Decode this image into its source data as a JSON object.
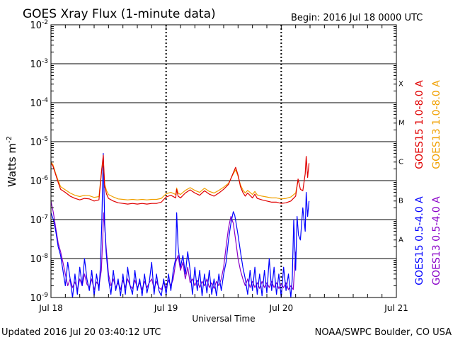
{
  "chart_data": {
    "type": "line",
    "title": "GOES Xray Flux (1-minute data)",
    "begin_label": "Begin:  2016 Jul 18 0000 UTC",
    "xlabel": "Universal Time",
    "ylabel_base": "Watts m",
    "ylabel_exp": "-2",
    "yscale": "log",
    "ylim": [
      1e-09,
      0.01
    ],
    "xlim": [
      0,
      72
    ],
    "x_unit": "hours since 2016 Jul 18 0000 UTC",
    "y_ticks": [
      {
        "base": "10",
        "exp": "-2",
        "value": 0.01
      },
      {
        "base": "10",
        "exp": "-3",
        "value": 0.001
      },
      {
        "base": "10",
        "exp": "-4",
        "value": 0.0001
      },
      {
        "base": "10",
        "exp": "-5",
        "value": 1e-05
      },
      {
        "base": "10",
        "exp": "-6",
        "value": 1e-06
      },
      {
        "base": "10",
        "exp": "-7",
        "value": 1e-07
      },
      {
        "base": "10",
        "exp": "-8",
        "value": 1e-08
      },
      {
        "base": "10",
        "exp": "-9",
        "value": 1e-09
      }
    ],
    "x_ticks": [
      {
        "label": "Jul 18",
        "x": 0
      },
      {
        "label": "Jul 19",
        "x": 24
      },
      {
        "label": "Jul 20",
        "x": 48
      },
      {
        "label": "Jul 21",
        "x": 72
      }
    ],
    "flare_classes": [
      {
        "label": "X",
        "value": 0.0003162
      },
      {
        "label": "M",
        "value": 3.162e-05
      },
      {
        "label": "C",
        "value": 3.162e-06
      },
      {
        "label": "B",
        "value": 3.162e-07
      },
      {
        "label": "A",
        "value": 3.162e-08
      }
    ],
    "gridlines": [
      0.001,
      0.0001,
      1e-05,
      1e-06,
      1e-07,
      1e-08
    ],
    "series": [
      {
        "name": "GOES15 1.0-8.0 A",
        "color": "#e00000",
        "x": [
          0,
          0.4,
          1,
          1.5,
          2,
          3,
          4,
          5,
          6,
          7,
          8,
          9,
          10,
          10.6,
          10.9,
          11.2,
          11.6,
          12,
          13,
          14,
          15,
          16,
          17,
          18,
          19,
          20,
          21,
          22,
          23,
          24,
          25,
          26,
          26.2,
          26.5,
          27,
          28,
          29,
          30,
          31,
          32,
          33,
          34,
          35,
          36,
          37,
          38,
          38.5,
          39,
          39.5,
          40,
          40.5,
          41,
          42,
          42.5,
          43,
          44,
          45,
          46,
          47,
          48,
          49,
          50,
          51,
          51.5,
          52,
          52.5,
          53,
          53.2,
          53.5,
          53.8
        ],
        "values": [
          2.8e-06,
          2.4e-06,
          1.4e-06,
          9e-07,
          6e-07,
          5e-07,
          4e-07,
          3.5e-07,
          3.2e-07,
          3.5e-07,
          3.4e-07,
          3e-07,
          3.2e-07,
          2e-06,
          4.5e-06,
          7e-07,
          4.5e-07,
          3.5e-07,
          3e-07,
          2.7e-07,
          2.6e-07,
          2.5e-07,
          2.6e-07,
          2.5e-07,
          2.6e-07,
          2.5e-07,
          2.6e-07,
          2.6e-07,
          2.8e-07,
          3.8e-07,
          4.2e-07,
          3.6e-07,
          6e-07,
          4e-07,
          3.6e-07,
          4.8e-07,
          5.8e-07,
          4.8e-07,
          4.2e-07,
          5.5e-07,
          4.5e-07,
          4e-07,
          4.8e-07,
          6e-07,
          8e-07,
          1.6e-06,
          2.2e-06,
          1.4e-06,
          7e-07,
          5e-07,
          4e-07,
          4.8e-07,
          3.6e-07,
          4.5e-07,
          3.5e-07,
          3.2e-07,
          3e-07,
          2.8e-07,
          2.8e-07,
          2.6e-07,
          2.7e-07,
          3e-07,
          4e-07,
          1.1e-06,
          6e-07,
          5.5e-07,
          1.5e-06,
          4.2e-06,
          1.2e-06,
          2.8e-06
        ]
      },
      {
        "name": "GOES13 1.0-8.0 A",
        "color": "#f0a000",
        "x": [
          0,
          0.4,
          1,
          1.5,
          2,
          3,
          4,
          5,
          6,
          7,
          8,
          9,
          10,
          10.6,
          10.9,
          11.2,
          11.6,
          12,
          13,
          14,
          15,
          16,
          17,
          18,
          19,
          20,
          21,
          22,
          23,
          24,
          25,
          26,
          26.2,
          26.5,
          27,
          28,
          29,
          30,
          31,
          32,
          33,
          34,
          35,
          36,
          37,
          38,
          38.5,
          39,
          39.5,
          40,
          40.5,
          41,
          42,
          42.5,
          43,
          44,
          45,
          46,
          47,
          48,
          49,
          50,
          51,
          51.5
        ],
        "values": [
          3e-06,
          2.6e-06,
          1.5e-06,
          1e-06,
          7e-07,
          5.8e-07,
          4.8e-07,
          4.2e-07,
          3.9e-07,
          4.2e-07,
          4.1e-07,
          3.7e-07,
          3.9e-07,
          2e-06,
          3e-06,
          8e-07,
          5.5e-07,
          4.4e-07,
          3.8e-07,
          3.4e-07,
          3.3e-07,
          3.2e-07,
          3.3e-07,
          3.2e-07,
          3.3e-07,
          3.2e-07,
          3.3e-07,
          3.3e-07,
          3.5e-07,
          4.6e-07,
          5e-07,
          4.4e-07,
          6.5e-07,
          4.8e-07,
          4.4e-07,
          5.6e-07,
          6.6e-07,
          5.6e-07,
          5e-07,
          6.4e-07,
          5.3e-07,
          4.8e-07,
          5.6e-07,
          6.8e-07,
          8.5e-07,
          1.5e-06,
          1.9e-06,
          1.3e-06,
          7.8e-07,
          5.8e-07,
          4.8e-07,
          5.6e-07,
          4.4e-07,
          5.3e-07,
          4.3e-07,
          4e-07,
          3.8e-07,
          3.6e-07,
          3.6e-07,
          3.4e-07,
          3.5e-07,
          3.8e-07,
          4.8e-07,
          1e-06
        ]
      },
      {
        "name": "GOES15 0.5-4.0 A",
        "color": "#0000ff",
        "x": [
          0,
          0.5,
          1,
          1.5,
          2,
          2.5,
          3,
          3.5,
          4,
          4.5,
          5,
          5.5,
          6,
          6.5,
          7,
          7.5,
          8,
          8.5,
          9,
          9.5,
          10,
          10.3,
          10.6,
          10.9,
          11.2,
          11.5,
          12,
          12.5,
          13,
          13.5,
          14,
          14.5,
          15,
          15.5,
          16,
          16.5,
          17,
          17.5,
          18,
          18.5,
          19,
          19.5,
          20,
          20.5,
          21,
          21.5,
          22,
          22.5,
          23,
          23.5,
          24,
          24.5,
          25,
          25.5,
          26,
          26.2,
          26.5,
          27,
          27.5,
          28,
          28.5,
          29,
          29.5,
          30,
          30.5,
          31,
          31.5,
          32,
          32.5,
          33,
          33.5,
          34,
          34.5,
          35,
          35.5,
          36,
          36.5,
          37,
          37.5,
          38,
          38.3,
          38.6,
          39,
          39.5,
          40,
          40.5,
          41,
          41.5,
          42,
          42.5,
          43,
          43.5,
          44,
          44.5,
          45,
          45.5,
          46,
          46.5,
          47,
          47.5,
          48,
          48.5,
          49,
          49.5,
          50,
          50.3,
          50.6,
          51,
          51.3,
          51.6,
          52,
          52.5,
          53,
          53.2,
          53.5,
          53.8
        ],
        "values": [
          1.5e-07,
          1e-07,
          5e-08,
          2e-08,
          1.2e-08,
          5e-09,
          2e-09,
          8e-09,
          3e-09,
          1e-09,
          4e-09,
          1.2e-09,
          6e-09,
          2e-09,
          1e-08,
          3e-09,
          1.5e-09,
          5e-09,
          1.1e-09,
          4e-09,
          1.5e-09,
          6e-09,
          8e-08,
          5e-06,
          8e-08,
          1.5e-08,
          3e-09,
          1.2e-09,
          5e-09,
          1.5e-09,
          3e-09,
          1.1e-09,
          4e-09,
          1.2e-09,
          6e-09,
          2e-09,
          1.2e-09,
          5e-09,
          1.5e-09,
          3e-09,
          1.1e-09,
          4e-09,
          1.3e-09,
          2.5e-09,
          8e-09,
          1.2e-09,
          4e-09,
          1.5e-09,
          1.1e-09,
          3e-09,
          1.2e-09,
          4e-09,
          1.5e-09,
          5e-09,
          1e-08,
          1.5e-07,
          2e-08,
          6e-09,
          1.2e-08,
          4e-09,
          1.5e-08,
          5e-09,
          1.2e-09,
          6e-09,
          1.5e-09,
          5e-09,
          1.1e-09,
          4e-09,
          1.3e-09,
          5e-09,
          1.2e-09,
          3e-09,
          1.1e-09,
          4e-09,
          1.5e-09,
          4e-09,
          8e-09,
          3e-08,
          8e-08,
          1.6e-07,
          1.3e-07,
          8e-08,
          4e-08,
          1.5e-08,
          6e-09,
          3e-09,
          1.2e-09,
          5e-09,
          1.5e-09,
          6e-09,
          1.2e-09,
          4e-09,
          1.1e-09,
          5e-09,
          1.3e-09,
          1e-08,
          1.5e-09,
          6e-09,
          1.2e-09,
          4e-09,
          1e-09,
          6e-09,
          1.5e-09,
          4e-09,
          1e-09,
          3e-09,
          1e-07,
          5e-09,
          1.2e-07,
          4e-08,
          3e-08,
          2e-07,
          5e-08,
          5e-07,
          1.2e-07,
          3e-07
        ]
      },
      {
        "name": "GOES13 0.5-4.0 A",
        "color": "#8a00c8",
        "x": [
          0,
          0.5,
          1,
          1.5,
          2,
          2.5,
          3,
          3.5,
          4,
          4.5,
          5,
          5.5,
          6,
          6.5,
          7,
          7.5,
          8,
          8.5,
          9,
          9.5,
          10,
          10.5,
          11,
          11.5,
          12,
          12.5,
          13,
          13.5,
          14,
          14.5,
          15,
          15.5,
          16,
          16.5,
          17,
          17.5,
          18,
          18.5,
          19,
          19.5,
          20,
          20.5,
          21,
          21.5,
          22,
          22.5,
          23,
          23.5,
          24,
          24.5,
          25,
          25.5,
          26,
          26.5,
          27,
          27.5,
          28,
          28.5,
          29,
          29.5,
          30,
          30.5,
          31,
          31.5,
          32,
          32.5,
          33,
          33.5,
          34,
          34.5,
          35,
          35.5,
          36,
          36.5,
          37,
          37.5,
          38,
          38.5,
          39,
          39.5,
          40,
          40.5,
          41,
          41.5,
          42,
          42.5,
          43,
          43.5,
          44,
          44.5,
          45,
          45.5,
          46,
          46.5,
          47,
          47.5,
          48,
          48.5,
          49,
          49.5,
          50,
          50.5,
          51
        ],
        "values": [
          3e-07,
          1.5e-07,
          6e-08,
          2.5e-08,
          1.5e-08,
          8e-09,
          4e-09,
          2e-09,
          3e-09,
          1.8e-09,
          2.5e-09,
          1.6e-09,
          3e-09,
          2e-09,
          4e-09,
          2.2e-09,
          1.8e-09,
          3e-09,
          1.6e-09,
          2.5e-09,
          2e-09,
          5e-09,
          1.5e-07,
          2e-08,
          4e-09,
          2e-09,
          3e-09,
          1.8e-09,
          2.4e-09,
          1.6e-09,
          2.8e-09,
          1.8e-09,
          3e-09,
          2e-09,
          1.7e-09,
          2.8e-09,
          1.8e-09,
          2.4e-09,
          1.6e-09,
          2.6e-09,
          1.8e-09,
          2.4e-09,
          3e-09,
          1.7e-09,
          2.6e-09,
          1.8e-09,
          1.6e-09,
          2.4e-09,
          1.8e-09,
          2.8e-09,
          2e-09,
          3e-09,
          8e-09,
          1.2e-08,
          5e-09,
          8e-09,
          3e-09,
          6e-09,
          2.4e-09,
          3e-09,
          2e-09,
          2.8e-09,
          1.8e-09,
          2.6e-09,
          2e-09,
          3e-09,
          1.8e-09,
          2.4e-09,
          1.7e-09,
          2.6e-09,
          2e-09,
          3e-09,
          6e-09,
          2e-08,
          6e-08,
          1.2e-07,
          8e-08,
          3e-08,
          1e-08,
          5e-09,
          3e-09,
          2e-09,
          3e-09,
          1.8e-09,
          2.6e-09,
          1.8e-09,
          2.4e-09,
          1.7e-09,
          2.6e-09,
          1.8e-09,
          2.4e-09,
          1.8e-09,
          2.6e-09,
          1.8e-09,
          2.4e-09,
          1.7e-09,
          2.2e-09,
          1.8e-09,
          2.4e-09,
          1.6e-09,
          2e-09,
          1.6e-09,
          1.5e-08
        ]
      }
    ]
  },
  "footer": {
    "updated": "Updated 2016 Jul 20 03:40:12 UTC",
    "credit": "NOAA/SWPC Boulder, CO USA"
  }
}
